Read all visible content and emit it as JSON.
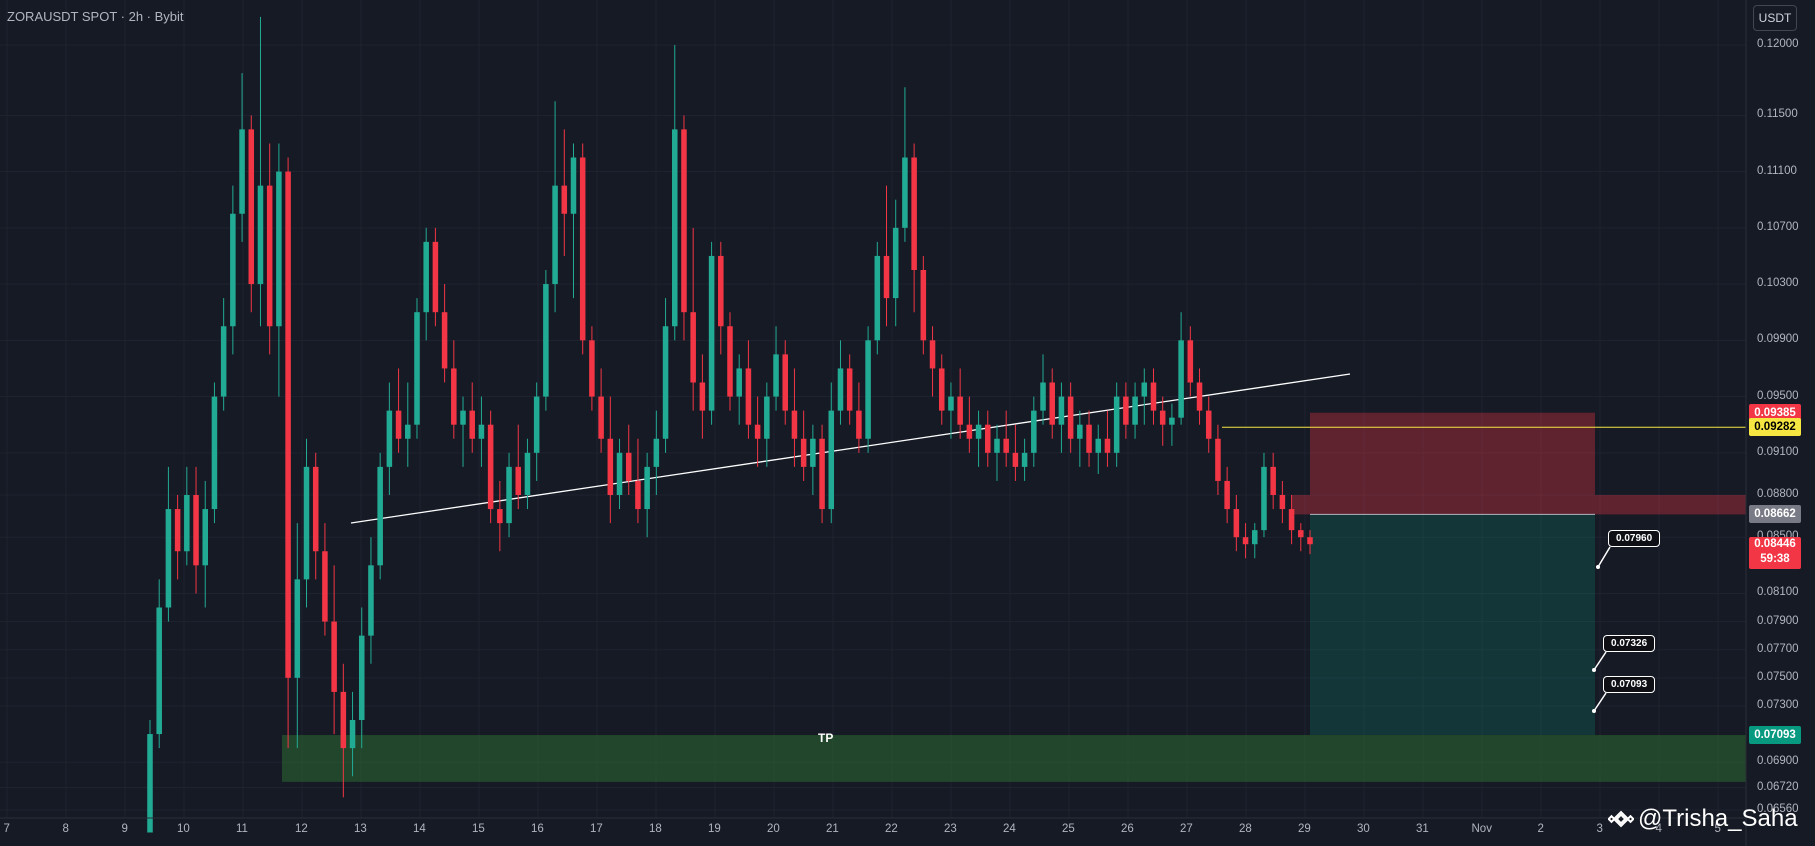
{
  "header": {
    "symbol": "ZORAUSDT SPOT · 2h · Bybit",
    "currency": "USDT"
  },
  "price_axis": {
    "ticks": [
      "0.12000",
      "0.11500",
      "0.11100",
      "0.10700",
      "0.10300",
      "0.09900",
      "0.09500",
      "0.09100",
      "0.08800",
      "0.08500",
      "0.08100",
      "0.07900",
      "0.07700",
      "0.07500",
      "0.07300",
      "0.06900",
      "0.06720",
      "0.06560"
    ]
  },
  "time_axis": {
    "labels": [
      "7",
      "8",
      "9",
      "10",
      "11",
      "12",
      "13",
      "14",
      "15",
      "16",
      "17",
      "18",
      "19",
      "20",
      "21",
      "22",
      "23",
      "24",
      "25",
      "26",
      "27",
      "28",
      "29",
      "30",
      "31",
      "Nov",
      "2",
      "3",
      "4",
      "5"
    ]
  },
  "price_tags": {
    "stop": {
      "value": "0.09385",
      "bg": "#f23645",
      "fg": "#ffffff"
    },
    "alert": {
      "value": "0.09282",
      "bg": "#f5e642",
      "fg": "#000000"
    },
    "entry": {
      "value": "0.08662",
      "bg": "#787b86",
      "fg": "#ffffff"
    },
    "target": {
      "value": "0.07093",
      "bg": "#089981",
      "fg": "#ffffff"
    },
    "last": {
      "value": "0.08446",
      "countdown": "59:38",
      "bg": "#f23645",
      "fg": "#ffffff"
    }
  },
  "callouts": [
    "0.07960",
    "0.07326",
    "0.07093"
  ],
  "tp_zone": {
    "label": "TP"
  },
  "watermark": {
    "handle": "@Trisha_Saha",
    "icon": "binance-icon"
  },
  "colors": {
    "up": "#22ab94",
    "down": "#f23645",
    "background": "#161a25",
    "grid": "#1f2330",
    "horizontal_line": "#f5e642"
  },
  "chart_data": {
    "type": "candlestick",
    "symbol": "ZORAUSDT",
    "timeframe": "2h",
    "exchange": "Bybit",
    "ylim": [
      0.0655,
      0.1215
    ],
    "levels": {
      "stop_loss": 0.09385,
      "entry": 0.08662,
      "take_profit": 0.07093,
      "horizontal": 0.09282,
      "last": 0.08446
    },
    "candles": [
      {
        "o": 0.064,
        "h": 0.072,
        "l": 0.064,
        "c": 0.071
      },
      {
        "o": 0.071,
        "h": 0.082,
        "l": 0.07,
        "c": 0.08
      },
      {
        "o": 0.08,
        "h": 0.09,
        "l": 0.079,
        "c": 0.087
      },
      {
        "o": 0.087,
        "h": 0.088,
        "l": 0.082,
        "c": 0.084
      },
      {
        "o": 0.084,
        "h": 0.09,
        "l": 0.083,
        "c": 0.088
      },
      {
        "o": 0.088,
        "h": 0.09,
        "l": 0.081,
        "c": 0.083
      },
      {
        "o": 0.083,
        "h": 0.089,
        "l": 0.08,
        "c": 0.087
      },
      {
        "o": 0.087,
        "h": 0.096,
        "l": 0.086,
        "c": 0.095
      },
      {
        "o": 0.095,
        "h": 0.102,
        "l": 0.094,
        "c": 0.1
      },
      {
        "o": 0.1,
        "h": 0.11,
        "l": 0.098,
        "c": 0.108
      },
      {
        "o": 0.108,
        "h": 0.118,
        "l": 0.106,
        "c": 0.114
      },
      {
        "o": 0.114,
        "h": 0.115,
        "l": 0.101,
        "c": 0.103
      },
      {
        "o": 0.103,
        "h": 0.122,
        "l": 0.1,
        "c": 0.11
      },
      {
        "o": 0.11,
        "h": 0.113,
        "l": 0.098,
        "c": 0.1
      },
      {
        "o": 0.1,
        "h": 0.113,
        "l": 0.095,
        "c": 0.111
      },
      {
        "o": 0.111,
        "h": 0.112,
        "l": 0.07,
        "c": 0.075
      },
      {
        "o": 0.075,
        "h": 0.086,
        "l": 0.07,
        "c": 0.082
      },
      {
        "o": 0.082,
        "h": 0.092,
        "l": 0.08,
        "c": 0.09
      },
      {
        "o": 0.09,
        "h": 0.091,
        "l": 0.082,
        "c": 0.084
      },
      {
        "o": 0.084,
        "h": 0.086,
        "l": 0.078,
        "c": 0.079
      },
      {
        "o": 0.079,
        "h": 0.083,
        "l": 0.071,
        "c": 0.074
      },
      {
        "o": 0.074,
        "h": 0.076,
        "l": 0.0665,
        "c": 0.07
      },
      {
        "o": 0.07,
        "h": 0.074,
        "l": 0.068,
        "c": 0.072
      },
      {
        "o": 0.072,
        "h": 0.08,
        "l": 0.07,
        "c": 0.078
      },
      {
        "o": 0.078,
        "h": 0.085,
        "l": 0.076,
        "c": 0.083
      },
      {
        "o": 0.083,
        "h": 0.091,
        "l": 0.082,
        "c": 0.09
      },
      {
        "o": 0.09,
        "h": 0.096,
        "l": 0.088,
        "c": 0.094
      },
      {
        "o": 0.094,
        "h": 0.097,
        "l": 0.091,
        "c": 0.092
      },
      {
        "o": 0.092,
        "h": 0.096,
        "l": 0.09,
        "c": 0.093
      },
      {
        "o": 0.093,
        "h": 0.102,
        "l": 0.092,
        "c": 0.101
      },
      {
        "o": 0.101,
        "h": 0.107,
        "l": 0.099,
        "c": 0.106
      },
      {
        "o": 0.106,
        "h": 0.107,
        "l": 0.1,
        "c": 0.101
      },
      {
        "o": 0.101,
        "h": 0.103,
        "l": 0.096,
        "c": 0.097
      },
      {
        "o": 0.097,
        "h": 0.099,
        "l": 0.092,
        "c": 0.093
      },
      {
        "o": 0.093,
        "h": 0.095,
        "l": 0.09,
        "c": 0.094
      },
      {
        "o": 0.094,
        "h": 0.096,
        "l": 0.091,
        "c": 0.092
      },
      {
        "o": 0.092,
        "h": 0.095,
        "l": 0.09,
        "c": 0.093
      },
      {
        "o": 0.093,
        "h": 0.094,
        "l": 0.086,
        "c": 0.087
      },
      {
        "o": 0.087,
        "h": 0.089,
        "l": 0.084,
        "c": 0.086
      },
      {
        "o": 0.086,
        "h": 0.091,
        "l": 0.085,
        "c": 0.09
      },
      {
        "o": 0.09,
        "h": 0.093,
        "l": 0.087,
        "c": 0.088
      },
      {
        "o": 0.088,
        "h": 0.092,
        "l": 0.087,
        "c": 0.091
      },
      {
        "o": 0.091,
        "h": 0.096,
        "l": 0.089,
        "c": 0.095
      },
      {
        "o": 0.095,
        "h": 0.104,
        "l": 0.094,
        "c": 0.103
      },
      {
        "o": 0.103,
        "h": 0.116,
        "l": 0.101,
        "c": 0.11
      },
      {
        "o": 0.11,
        "h": 0.114,
        "l": 0.105,
        "c": 0.108
      },
      {
        "o": 0.108,
        "h": 0.113,
        "l": 0.102,
        "c": 0.112
      },
      {
        "o": 0.112,
        "h": 0.113,
        "l": 0.098,
        "c": 0.099
      },
      {
        "o": 0.099,
        "h": 0.1,
        "l": 0.094,
        "c": 0.095
      },
      {
        "o": 0.095,
        "h": 0.097,
        "l": 0.091,
        "c": 0.092
      },
      {
        "o": 0.092,
        "h": 0.095,
        "l": 0.086,
        "c": 0.088
      },
      {
        "o": 0.088,
        "h": 0.092,
        "l": 0.087,
        "c": 0.091
      },
      {
        "o": 0.091,
        "h": 0.093,
        "l": 0.088,
        "c": 0.089
      },
      {
        "o": 0.089,
        "h": 0.092,
        "l": 0.086,
        "c": 0.087
      },
      {
        "o": 0.087,
        "h": 0.091,
        "l": 0.085,
        "c": 0.09
      },
      {
        "o": 0.09,
        "h": 0.094,
        "l": 0.088,
        "c": 0.092
      },
      {
        "o": 0.092,
        "h": 0.102,
        "l": 0.091,
        "c": 0.1
      },
      {
        "o": 0.1,
        "h": 0.12,
        "l": 0.099,
        "c": 0.114
      },
      {
        "o": 0.114,
        "h": 0.115,
        "l": 0.099,
        "c": 0.101
      },
      {
        "o": 0.101,
        "h": 0.107,
        "l": 0.094,
        "c": 0.096
      },
      {
        "o": 0.096,
        "h": 0.098,
        "l": 0.092,
        "c": 0.094
      },
      {
        "o": 0.094,
        "h": 0.106,
        "l": 0.093,
        "c": 0.105
      },
      {
        "o": 0.105,
        "h": 0.106,
        "l": 0.098,
        "c": 0.1
      },
      {
        "o": 0.1,
        "h": 0.101,
        "l": 0.094,
        "c": 0.095
      },
      {
        "o": 0.095,
        "h": 0.098,
        "l": 0.093,
        "c": 0.097
      },
      {
        "o": 0.097,
        "h": 0.099,
        "l": 0.092,
        "c": 0.093
      },
      {
        "o": 0.093,
        "h": 0.095,
        "l": 0.09,
        "c": 0.092
      },
      {
        "o": 0.092,
        "h": 0.096,
        "l": 0.09,
        "c": 0.095
      },
      {
        "o": 0.095,
        "h": 0.1,
        "l": 0.094,
        "c": 0.098
      },
      {
        "o": 0.098,
        "h": 0.099,
        "l": 0.093,
        "c": 0.094
      },
      {
        "o": 0.094,
        "h": 0.097,
        "l": 0.09,
        "c": 0.092
      },
      {
        "o": 0.092,
        "h": 0.094,
        "l": 0.089,
        "c": 0.09
      },
      {
        "o": 0.09,
        "h": 0.093,
        "l": 0.088,
        "c": 0.092
      },
      {
        "o": 0.092,
        "h": 0.093,
        "l": 0.086,
        "c": 0.087
      },
      {
        "o": 0.087,
        "h": 0.096,
        "l": 0.086,
        "c": 0.094
      },
      {
        "o": 0.094,
        "h": 0.099,
        "l": 0.093,
        "c": 0.097
      },
      {
        "o": 0.097,
        "h": 0.098,
        "l": 0.093,
        "c": 0.094
      },
      {
        "o": 0.094,
        "h": 0.096,
        "l": 0.091,
        "c": 0.092
      },
      {
        "o": 0.092,
        "h": 0.1,
        "l": 0.091,
        "c": 0.099
      },
      {
        "o": 0.099,
        "h": 0.106,
        "l": 0.098,
        "c": 0.105
      },
      {
        "o": 0.105,
        "h": 0.11,
        "l": 0.1,
        "c": 0.102
      },
      {
        "o": 0.102,
        "h": 0.109,
        "l": 0.1,
        "c": 0.107
      },
      {
        "o": 0.107,
        "h": 0.117,
        "l": 0.106,
        "c": 0.112
      },
      {
        "o": 0.112,
        "h": 0.113,
        "l": 0.101,
        "c": 0.104
      },
      {
        "o": 0.104,
        "h": 0.105,
        "l": 0.098,
        "c": 0.099
      },
      {
        "o": 0.099,
        "h": 0.1,
        "l": 0.095,
        "c": 0.097
      },
      {
        "o": 0.097,
        "h": 0.098,
        "l": 0.093,
        "c": 0.094
      },
      {
        "o": 0.094,
        "h": 0.096,
        "l": 0.092,
        "c": 0.095
      },
      {
        "o": 0.095,
        "h": 0.097,
        "l": 0.092,
        "c": 0.093
      },
      {
        "o": 0.093,
        "h": 0.095,
        "l": 0.091,
        "c": 0.092
      },
      {
        "o": 0.092,
        "h": 0.094,
        "l": 0.09,
        "c": 0.093
      },
      {
        "o": 0.093,
        "h": 0.094,
        "l": 0.09,
        "c": 0.091
      },
      {
        "o": 0.091,
        "h": 0.093,
        "l": 0.089,
        "c": 0.092
      },
      {
        "o": 0.092,
        "h": 0.094,
        "l": 0.09,
        "c": 0.091
      },
      {
        "o": 0.091,
        "h": 0.093,
        "l": 0.089,
        "c": 0.09
      },
      {
        "o": 0.09,
        "h": 0.092,
        "l": 0.089,
        "c": 0.091
      },
      {
        "o": 0.091,
        "h": 0.095,
        "l": 0.09,
        "c": 0.094
      },
      {
        "o": 0.094,
        "h": 0.098,
        "l": 0.093,
        "c": 0.096
      },
      {
        "o": 0.096,
        "h": 0.097,
        "l": 0.092,
        "c": 0.093
      },
      {
        "o": 0.093,
        "h": 0.096,
        "l": 0.091,
        "c": 0.095
      },
      {
        "o": 0.095,
        "h": 0.096,
        "l": 0.091,
        "c": 0.092
      },
      {
        "o": 0.092,
        "h": 0.094,
        "l": 0.09,
        "c": 0.093
      },
      {
        "o": 0.093,
        "h": 0.094,
        "l": 0.09,
        "c": 0.091
      },
      {
        "o": 0.091,
        "h": 0.093,
        "l": 0.0895,
        "c": 0.092
      },
      {
        "o": 0.092,
        "h": 0.094,
        "l": 0.09,
        "c": 0.091
      },
      {
        "o": 0.091,
        "h": 0.096,
        "l": 0.09,
        "c": 0.095
      },
      {
        "o": 0.095,
        "h": 0.096,
        "l": 0.092,
        "c": 0.093
      },
      {
        "o": 0.093,
        "h": 0.096,
        "l": 0.092,
        "c": 0.095
      },
      {
        "o": 0.095,
        "h": 0.097,
        "l": 0.093,
        "c": 0.096
      },
      {
        "o": 0.096,
        "h": 0.097,
        "l": 0.093,
        "c": 0.094
      },
      {
        "o": 0.094,
        "h": 0.095,
        "l": 0.0915,
        "c": 0.093
      },
      {
        "o": 0.093,
        "h": 0.0945,
        "l": 0.0915,
        "c": 0.0935
      },
      {
        "o": 0.0935,
        "h": 0.101,
        "l": 0.093,
        "c": 0.099
      },
      {
        "o": 0.099,
        "h": 0.1,
        "l": 0.095,
        "c": 0.096
      },
      {
        "o": 0.096,
        "h": 0.097,
        "l": 0.093,
        "c": 0.094
      },
      {
        "o": 0.094,
        "h": 0.095,
        "l": 0.091,
        "c": 0.092
      },
      {
        "o": 0.092,
        "h": 0.093,
        "l": 0.088,
        "c": 0.089
      },
      {
        "o": 0.089,
        "h": 0.09,
        "l": 0.086,
        "c": 0.087
      },
      {
        "o": 0.087,
        "h": 0.088,
        "l": 0.084,
        "c": 0.085
      },
      {
        "o": 0.085,
        "h": 0.086,
        "l": 0.0835,
        "c": 0.0845
      },
      {
        "o": 0.0845,
        "h": 0.086,
        "l": 0.0835,
        "c": 0.0855
      },
      {
        "o": 0.0855,
        "h": 0.091,
        "l": 0.085,
        "c": 0.09
      },
      {
        "o": 0.09,
        "h": 0.091,
        "l": 0.087,
        "c": 0.088
      },
      {
        "o": 0.088,
        "h": 0.089,
        "l": 0.086,
        "c": 0.087
      },
      {
        "o": 0.087,
        "h": 0.088,
        "l": 0.0845,
        "c": 0.0855
      },
      {
        "o": 0.0855,
        "h": 0.086,
        "l": 0.084,
        "c": 0.085
      },
      {
        "o": 0.085,
        "h": 0.0855,
        "l": 0.0838,
        "c": 0.0845
      }
    ]
  }
}
